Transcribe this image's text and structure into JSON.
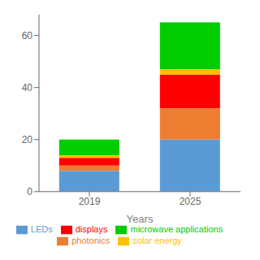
{
  "chart_data": {
    "type": "bar",
    "stacked": true,
    "xlabel": "Years",
    "categories": [
      "2019",
      "2025"
    ],
    "series": [
      {
        "name": "LEDs",
        "color": "#5B9BD5",
        "values": [
          8,
          20
        ]
      },
      {
        "name": "photonics",
        "color": "#ED7D31",
        "values": [
          2,
          12
        ]
      },
      {
        "name": "displays",
        "color": "#FF0000",
        "values": [
          3,
          13
        ]
      },
      {
        "name": "solar energy",
        "color": "#FFC000",
        "values": [
          1,
          2
        ]
      },
      {
        "name": "microwave applications",
        "color": "#00CC00",
        "values": [
          6,
          18
        ]
      }
    ],
    "ylim": [
      0,
      68
    ],
    "yticks": [
      0,
      20,
      40,
      60
    ],
    "grid": false,
    "legend": "bottom"
  }
}
